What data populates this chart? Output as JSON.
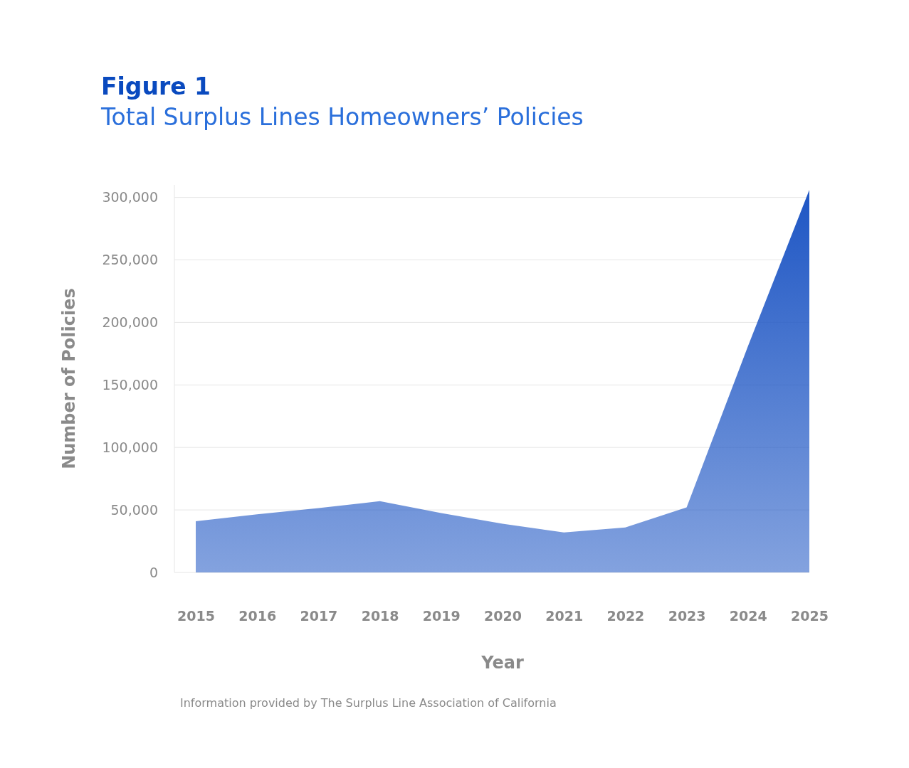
{
  "chart_data": {
    "type": "area",
    "title": "Figure 1",
    "subtitle": "Total Surplus Lines Homeowners’ Policies",
    "xlabel": "Year",
    "ylabel": "Number of Policies",
    "categories": [
      "2015",
      "2016",
      "2017",
      "2018",
      "2019",
      "2020",
      "2021",
      "2022",
      "2023",
      "2024",
      "2025"
    ],
    "series": [
      {
        "color": "#1e56c4",
        "values": [
          41000,
          46500,
          51500,
          57000,
          47500,
          39000,
          32000,
          36000,
          52000,
          181000,
          306000
        ]
      }
    ],
    "ylim": [
      0,
      310000
    ],
    "yticks": [
      0,
      {
        "value": 50000,
        "label": "50,000"
      },
      {
        "value": 100000,
        "label": "100,000"
      },
      {
        "value": 150000,
        "label": "150,000"
      },
      {
        "value": 200000,
        "label": "200,000"
      },
      {
        "value": 250000,
        "label": "250,000"
      },
      {
        "value": 300000,
        "label": "300,000"
      }
    ],
    "grid": "y",
    "annotations": [
      "Information provided by The Surplus Line Association of California"
    ]
  }
}
